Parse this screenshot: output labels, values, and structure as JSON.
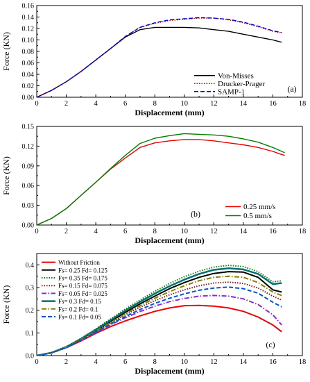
{
  "chart_data": [
    {
      "type": "line",
      "panel_label": "(a)",
      "xlabel": "Displacement (mm)",
      "ylabel": "Force (KN)",
      "xlim": [
        0,
        18
      ],
      "ylim": [
        0,
        0.16
      ],
      "xticks": [
        0,
        2,
        4,
        6,
        8,
        10,
        12,
        14,
        16,
        18
      ],
      "yticks": [
        0.0,
        0.02,
        0.04,
        0.06,
        0.08,
        0.1,
        0.12,
        0.14,
        0.16
      ],
      "ytick_decimals": 2,
      "legend_position": "lower-right",
      "series": [
        {
          "name": "Von-Misses",
          "color": "#000000",
          "dash": "solid",
          "x": [
            0,
            1,
            2,
            3,
            4,
            5,
            6,
            7,
            8,
            9,
            10,
            11,
            12,
            13,
            14,
            15,
            16,
            16.6
          ],
          "y": [
            0.0,
            0.012,
            0.027,
            0.045,
            0.065,
            0.085,
            0.105,
            0.118,
            0.122,
            0.122,
            0.122,
            0.121,
            0.118,
            0.115,
            0.11,
            0.105,
            0.1,
            0.096
          ]
        },
        {
          "name": "Drucker-Prager",
          "color": "#cc0000",
          "dash": "dotted",
          "x": [
            0,
            1,
            2,
            3,
            4,
            5,
            6,
            7,
            8,
            9,
            10,
            11,
            12,
            13,
            14,
            15,
            16,
            16.6
          ],
          "y": [
            0.0,
            0.012,
            0.027,
            0.045,
            0.065,
            0.085,
            0.106,
            0.122,
            0.129,
            0.134,
            0.136,
            0.138,
            0.138,
            0.135,
            0.13,
            0.123,
            0.115,
            0.112
          ]
        },
        {
          "name": "SAMP-1",
          "color": "#0000dd",
          "dash": "dashed",
          "x": [
            0,
            1,
            2,
            3,
            4,
            5,
            6,
            7,
            8,
            9,
            10,
            11,
            12,
            13,
            14,
            15,
            16,
            16.6
          ],
          "y": [
            0.0,
            0.012,
            0.027,
            0.045,
            0.065,
            0.085,
            0.106,
            0.122,
            0.13,
            0.135,
            0.137,
            0.139,
            0.138,
            0.136,
            0.131,
            0.124,
            0.116,
            0.113
          ]
        }
      ]
    },
    {
      "type": "line",
      "panel_label": "(b)",
      "xlabel": "Displacement (mm)",
      "ylabel": "Force (KN)",
      "xlim": [
        0,
        18
      ],
      "ylim": [
        0,
        0.15
      ],
      "xticks": [
        0,
        2,
        4,
        6,
        8,
        10,
        12,
        14,
        16,
        18
      ],
      "yticks": [
        0.0,
        0.03,
        0.06,
        0.09,
        0.12,
        0.15
      ],
      "ytick_decimals": 2,
      "legend_position": "lower-right",
      "series": [
        {
          "name": "0.25 mm/s",
          "color": "#ee0000",
          "dash": "solid",
          "x": [
            0,
            1,
            2,
            3,
            4,
            5,
            6,
            7,
            8,
            9,
            10,
            11,
            12,
            13,
            14,
            15,
            16,
            16.5,
            16.8
          ],
          "y": [
            0.0,
            0.01,
            0.025,
            0.045,
            0.065,
            0.085,
            0.102,
            0.118,
            0.125,
            0.128,
            0.13,
            0.13,
            0.128,
            0.125,
            0.122,
            0.118,
            0.112,
            0.108,
            0.106
          ]
        },
        {
          "name": "0.5 mm/s",
          "color": "#008000",
          "dash": "solid",
          "x": [
            0,
            1,
            2,
            3,
            4,
            5,
            6,
            7,
            8,
            9,
            10,
            11,
            12,
            13,
            14,
            15,
            16,
            16.5,
            16.8
          ],
          "y": [
            0.0,
            0.01,
            0.025,
            0.045,
            0.065,
            0.086,
            0.106,
            0.124,
            0.132,
            0.136,
            0.139,
            0.138,
            0.137,
            0.135,
            0.131,
            0.126,
            0.118,
            0.113,
            0.11
          ]
        }
      ]
    },
    {
      "type": "line",
      "panel_label": "(c)",
      "xlabel": "Displacement (mm)",
      "ylabel": "Force (KN)",
      "xlim": [
        0,
        18
      ],
      "ylim": [
        0,
        0.45
      ],
      "xticks": [
        0,
        2,
        4,
        6,
        8,
        10,
        12,
        14,
        16,
        18
      ],
      "yticks": [
        0.0,
        0.1,
        0.2,
        0.3,
        0.4
      ],
      "ytick_decimals": 1,
      "legend_position": "upper-left",
      "series": [
        {
          "name": "Without Friction",
          "color": "#ee0000",
          "dash": "solid",
          "width": 2,
          "x": [
            0,
            1,
            2,
            3,
            4,
            5,
            6,
            7,
            8,
            9,
            10,
            11,
            12,
            13,
            14,
            15,
            16,
            16.6
          ],
          "y": [
            0.0,
            0.012,
            0.035,
            0.065,
            0.098,
            0.128,
            0.153,
            0.175,
            0.195,
            0.21,
            0.22,
            0.221,
            0.218,
            0.21,
            0.195,
            0.17,
            0.135,
            0.105
          ]
        },
        {
          "name": "Fs= 0.25 Fd= 0.125",
          "color": "#000000",
          "dash": "solid",
          "width": 2,
          "x": [
            0,
            1,
            2,
            3,
            4,
            5,
            6,
            7,
            8,
            9,
            10,
            11,
            12,
            13,
            14,
            15,
            16,
            16.6
          ],
          "y": [
            0.0,
            0.013,
            0.037,
            0.072,
            0.11,
            0.15,
            0.19,
            0.228,
            0.262,
            0.295,
            0.322,
            0.345,
            0.362,
            0.37,
            0.368,
            0.345,
            0.29,
            0.28
          ]
        },
        {
          "name": "Fs= 0.35 Fd= 0.175",
          "color": "#008000",
          "dash": "dotted",
          "width": 2,
          "x": [
            0,
            1,
            2,
            3,
            4,
            5,
            6,
            7,
            8,
            9,
            10,
            11,
            12,
            13,
            14,
            15,
            16,
            16.6
          ],
          "y": [
            0.0,
            0.014,
            0.04,
            0.076,
            0.118,
            0.162,
            0.205,
            0.245,
            0.283,
            0.318,
            0.348,
            0.372,
            0.39,
            0.398,
            0.392,
            0.37,
            0.325,
            0.33
          ]
        },
        {
          "name": "Fs= 0.15 Fd= 0.075",
          "color": "#8b1a1a",
          "dash": "dotted",
          "width": 2,
          "x": [
            0,
            1,
            2,
            3,
            4,
            5,
            6,
            7,
            8,
            9,
            10,
            11,
            12,
            13,
            14,
            15,
            16,
            16.6
          ],
          "y": [
            0.0,
            0.013,
            0.036,
            0.07,
            0.106,
            0.143,
            0.18,
            0.213,
            0.242,
            0.268,
            0.29,
            0.308,
            0.32,
            0.324,
            0.318,
            0.298,
            0.262,
            0.245
          ]
        },
        {
          "name": "Fs= 0.05 Fd= 0.025",
          "color": "#8a2be2",
          "dash": "dashdot",
          "width": 2,
          "x": [
            0,
            1,
            2,
            3,
            4,
            5,
            6,
            7,
            8,
            9,
            10,
            11,
            12,
            13,
            14,
            15,
            16,
            16.6
          ],
          "y": [
            0.0,
            0.012,
            0.035,
            0.067,
            0.101,
            0.136,
            0.167,
            0.194,
            0.218,
            0.238,
            0.252,
            0.262,
            0.265,
            0.262,
            0.25,
            0.225,
            0.18,
            0.135
          ]
        },
        {
          "name": "Fs= 0.3 Fd= 0.15",
          "color": "#007070",
          "dash": "solid",
          "width": 2.5,
          "x": [
            0,
            1,
            2,
            3,
            4,
            5,
            6,
            7,
            8,
            9,
            10,
            11,
            12,
            13,
            14,
            15,
            16,
            16.6
          ],
          "y": [
            0.0,
            0.013,
            0.038,
            0.074,
            0.114,
            0.156,
            0.198,
            0.237,
            0.273,
            0.306,
            0.335,
            0.36,
            0.378,
            0.385,
            0.38,
            0.36,
            0.315,
            0.32
          ]
        },
        {
          "name": "Fs= 0.2 Fd= 0.1",
          "color": "#808000",
          "dash": "dashdot",
          "width": 2,
          "x": [
            0,
            1,
            2,
            3,
            4,
            5,
            6,
            7,
            8,
            9,
            10,
            11,
            12,
            13,
            14,
            15,
            16,
            16.6
          ],
          "y": [
            0.0,
            0.013,
            0.037,
            0.071,
            0.108,
            0.146,
            0.185,
            0.22,
            0.253,
            0.282,
            0.308,
            0.33,
            0.345,
            0.35,
            0.345,
            0.322,
            0.28,
            0.265
          ]
        },
        {
          "name": "Fs= 0.1 Fd= 0.05",
          "color": "#0055cc",
          "dash": "dashed",
          "width": 2,
          "x": [
            0,
            1,
            2,
            3,
            4,
            5,
            6,
            7,
            8,
            9,
            10,
            11,
            12,
            13,
            14,
            15,
            16,
            16.6
          ],
          "y": [
            0.0,
            0.012,
            0.035,
            0.068,
            0.103,
            0.139,
            0.172,
            0.203,
            0.23,
            0.253,
            0.272,
            0.288,
            0.298,
            0.302,
            0.295,
            0.275,
            0.235,
            0.215
          ]
        }
      ]
    }
  ]
}
